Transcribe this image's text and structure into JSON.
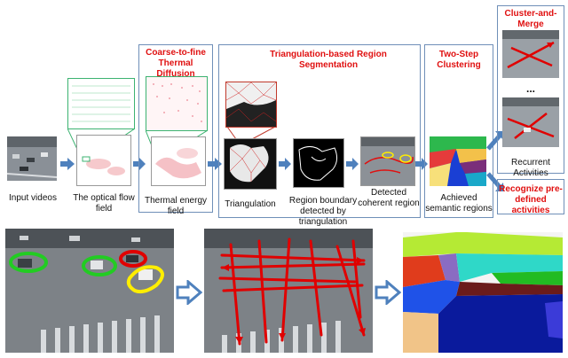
{
  "titles": {
    "diffusion": "Coarse-to-fine Thermal Diffusion",
    "segmentation": "Triangulation-based Region Segmentation",
    "clustering": "Two-Step Clustering",
    "merge": "Cluster-and-Merge",
    "recognize": "Recognize pre-defined activities"
  },
  "labels": {
    "input": "Input videos",
    "flow": "The optical flow field",
    "thermal": "Thermal energy field",
    "triangulation": "Triangulation",
    "boundary": "Region boundary detected by triangulation",
    "coherent": "Detected coherent region",
    "semantic": "Achieved semantic regions",
    "recurrent": "Recurrent Activities",
    "ellipsis": "..."
  },
  "colors": {
    "accent": "#e01010",
    "box_border": "#6f8fb8",
    "arrow_fill": "#4f81bd",
    "green_loop": "#22cc22",
    "yellow_loop": "#ffee00",
    "red_flow": "#e00000"
  }
}
